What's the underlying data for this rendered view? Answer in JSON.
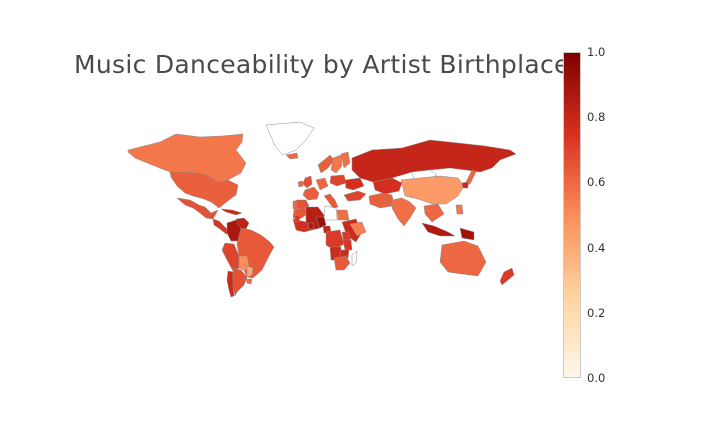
{
  "chart_data": {
    "type": "choropleth",
    "title": "Music Danceability by Artist Birthplace",
    "colorbar": {
      "min": 0.0,
      "max": 1.0,
      "ticks": [
        "0.0",
        "0.2",
        "0.4",
        "0.6",
        "0.8",
        "1.0"
      ],
      "colorscale": [
        "#fff7ec",
        "#fdd49e",
        "#fc8d59",
        "#d7301f",
        "#7f0000"
      ]
    },
    "regions": [
      {
        "name": "Canada",
        "value": 0.56
      },
      {
        "name": "Greenland",
        "value": null
      },
      {
        "name": "United States",
        "value": 0.62
      },
      {
        "name": "Mexico",
        "value": 0.66
      },
      {
        "name": "Central America",
        "value": 0.74
      },
      {
        "name": "Caribbean",
        "value": 0.78
      },
      {
        "name": "Colombia",
        "value": 0.88
      },
      {
        "name": "Venezuela",
        "value": 0.82
      },
      {
        "name": "Peru",
        "value": 0.7
      },
      {
        "name": "Brazil",
        "value": 0.64
      },
      {
        "name": "Bolivia",
        "value": 0.5
      },
      {
        "name": "Paraguay",
        "value": 0.4
      },
      {
        "name": "Chile",
        "value": 0.78
      },
      {
        "name": "Argentina",
        "value": 0.66
      },
      {
        "name": "Uruguay",
        "value": 0.6
      },
      {
        "name": "Iceland",
        "value": 0.6
      },
      {
        "name": "United Kingdom",
        "value": 0.66
      },
      {
        "name": "Ireland",
        "value": 0.6
      },
      {
        "name": "Norway",
        "value": 0.62
      },
      {
        "name": "Sweden",
        "value": 0.56
      },
      {
        "name": "Finland",
        "value": 0.58
      },
      {
        "name": "France",
        "value": 0.62
      },
      {
        "name": "Spain",
        "value": 0.66
      },
      {
        "name": "Portugal",
        "value": 0.6
      },
      {
        "name": "Germany",
        "value": 0.6
      },
      {
        "name": "Italy",
        "value": 0.64
      },
      {
        "name": "Poland",
        "value": 0.7
      },
      {
        "name": "Ukraine",
        "value": 0.76
      },
      {
        "name": "Russia",
        "value": 0.8
      },
      {
        "name": "Turkey",
        "value": 0.7
      },
      {
        "name": "Morocco",
        "value": 0.64
      },
      {
        "name": "Algeria",
        "value": 0.84
      },
      {
        "name": "Mali",
        "value": 0.76
      },
      {
        "name": "Libya",
        "value": null
      },
      {
        "name": "Egypt",
        "value": 0.58
      },
      {
        "name": "Saudi Arabia",
        "value": 0.78
      },
      {
        "name": "Iran",
        "value": 0.62
      },
      {
        "name": "Kazakhstan",
        "value": 0.76
      },
      {
        "name": "Mongolia",
        "value": null
      },
      {
        "name": "China",
        "value": 0.45
      },
      {
        "name": "India",
        "value": 0.58
      },
      {
        "name": "Pakistan",
        "value": 0.62
      },
      {
        "name": "Nigeria",
        "value": 0.92
      },
      {
        "name": "Ghana",
        "value": 0.88
      },
      {
        "name": "Senegal",
        "value": 0.74
      },
      {
        "name": "Cameroon",
        "value": 0.8
      },
      {
        "name": "Ethiopia",
        "value": 0.54
      },
      {
        "name": "Kenya",
        "value": 0.72
      },
      {
        "name": "DR Congo",
        "value": 0.72
      },
      {
        "name": "Angola",
        "value": 0.78
      },
      {
        "name": "Tanzania",
        "value": 0.74
      },
      {
        "name": "Zambia",
        "value": 0.78
      },
      {
        "name": "South Africa",
        "value": 0.64
      },
      {
        "name": "Madagascar",
        "value": null
      },
      {
        "name": "Japan",
        "value": 0.6
      },
      {
        "name": "South Korea",
        "value": 0.78
      },
      {
        "name": "Philippines",
        "value": 0.56
      },
      {
        "name": "Southeast Asia",
        "value": 0.6
      },
      {
        "name": "Indonesia",
        "value": 0.86
      },
      {
        "name": "Papua New Guinea",
        "value": 0.9
      },
      {
        "name": "Australia",
        "value": 0.6
      },
      {
        "name": "New Zealand",
        "value": 0.72
      }
    ]
  }
}
